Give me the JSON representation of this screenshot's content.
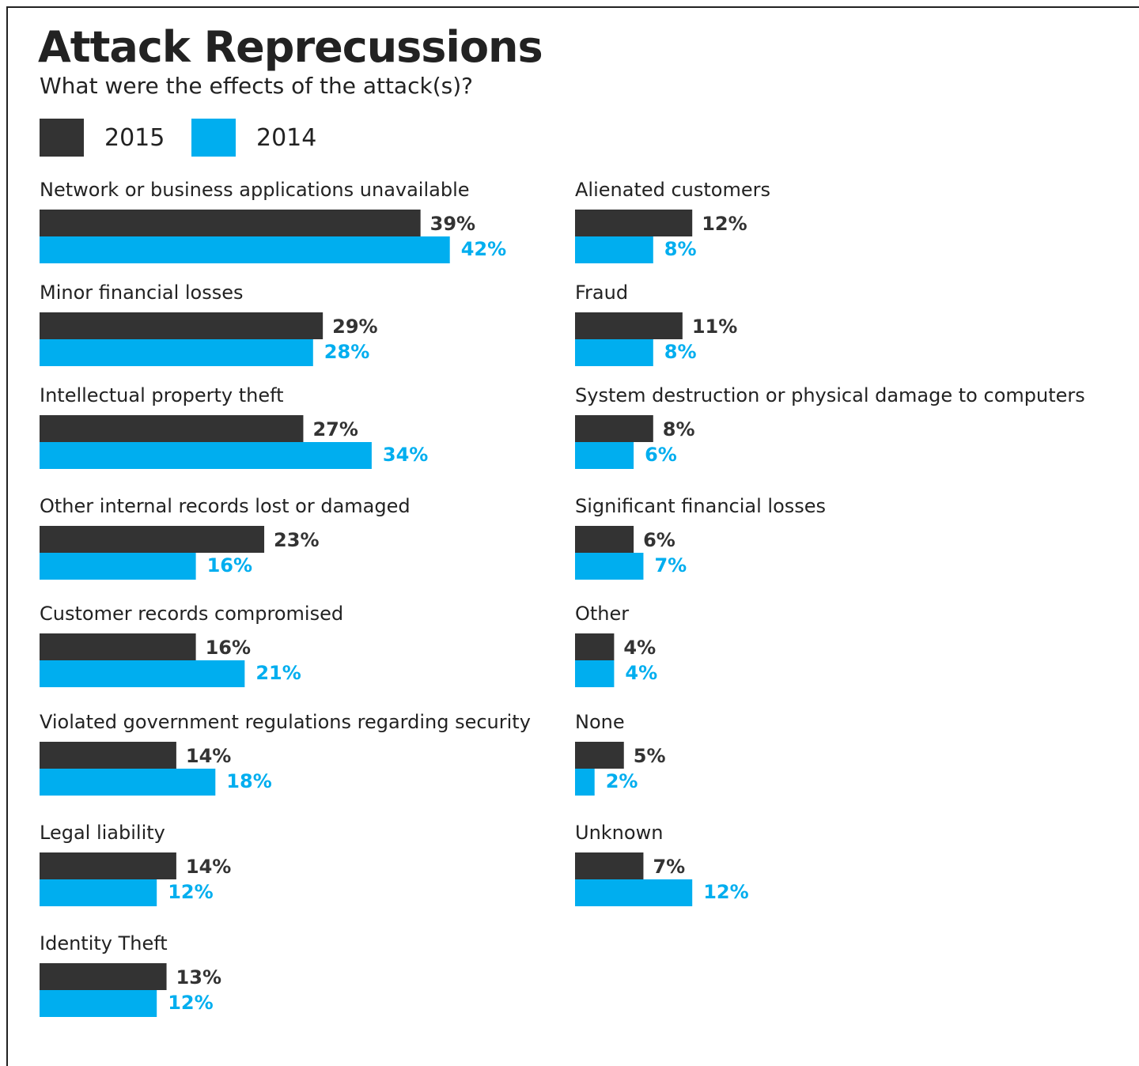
{
  "colors": {
    "series_2015": "#333333",
    "series_2014": "#00aeef",
    "label_2015": "#333333",
    "label_2014": "#00aeef"
  },
  "chart_data": {
    "type": "bar",
    "orientation": "horizontal",
    "title": "Attack Reprecussions",
    "subtitle": "What were the effects of the attack(s)?",
    "legend": [
      "2015",
      "2014"
    ],
    "legend_placement": "top-left",
    "grid": false,
    "unit": "%",
    "xlim": [
      0,
      42
    ],
    "groups": [
      {
        "column": "left",
        "items": [
          {
            "category": "Network or business applications unavailable",
            "v2015": 39,
            "v2014": 42,
            "l2015": "39%",
            "l2014": "42%"
          },
          {
            "category": "Minor financial losses",
            "v2015": 29,
            "v2014": 28,
            "l2015": "29%",
            "l2014": "28%"
          },
          {
            "category": "Intellectual property theft",
            "v2015": 27,
            "v2014": 34,
            "l2015": "27%",
            "l2014": "34%"
          },
          {
            "category": "Other internal records lost or damaged",
            "v2015": 23,
            "v2014": 16,
            "l2015": "23%",
            "l2014": "16%"
          },
          {
            "category": "Customer records compromised",
            "v2015": 16,
            "v2014": 21,
            "l2015": "16%",
            "l2014": "21%"
          },
          {
            "category": "Violated government regulations regarding security",
            "v2015": 14,
            "v2014": 18,
            "l2015": "14%",
            "l2014": "18%"
          },
          {
            "category": "Legal liability",
            "v2015": 14,
            "v2014": 12,
            "l2015": "14%",
            "l2014": "12%"
          },
          {
            "category": "Identity Theft",
            "v2015": 13,
            "v2014": 12,
            "l2015": "13%",
            "l2014": "12%"
          }
        ]
      },
      {
        "column": "right",
        "items": [
          {
            "category": "Alienated customers",
            "v2015": 12,
            "v2014": 8,
            "l2015": "12%",
            "l2014": "8%"
          },
          {
            "category": "Fraud",
            "v2015": 11,
            "v2014": 8,
            "l2015": "11%",
            "l2014": "8%"
          },
          {
            "category": "System destruction or physical damage to computers",
            "v2015": 8,
            "v2014": 6,
            "l2015": "8%",
            "l2014": "6%"
          },
          {
            "category": "Significant financial losses",
            "v2015": 6,
            "v2014": 7,
            "l2015": "6%",
            "l2014": "7%"
          },
          {
            "category": "Other",
            "v2015": 4,
            "v2014": 4,
            "l2015": "4%",
            "l2014": "4%"
          },
          {
            "category": "None",
            "v2015": 5,
            "v2014": 2,
            "l2015": "5%",
            "l2014": "2%"
          },
          {
            "category": "Unknown",
            "v2015": 7,
            "v2014": 12,
            "l2015": "7%",
            "l2014": "12%"
          }
        ]
      }
    ]
  }
}
